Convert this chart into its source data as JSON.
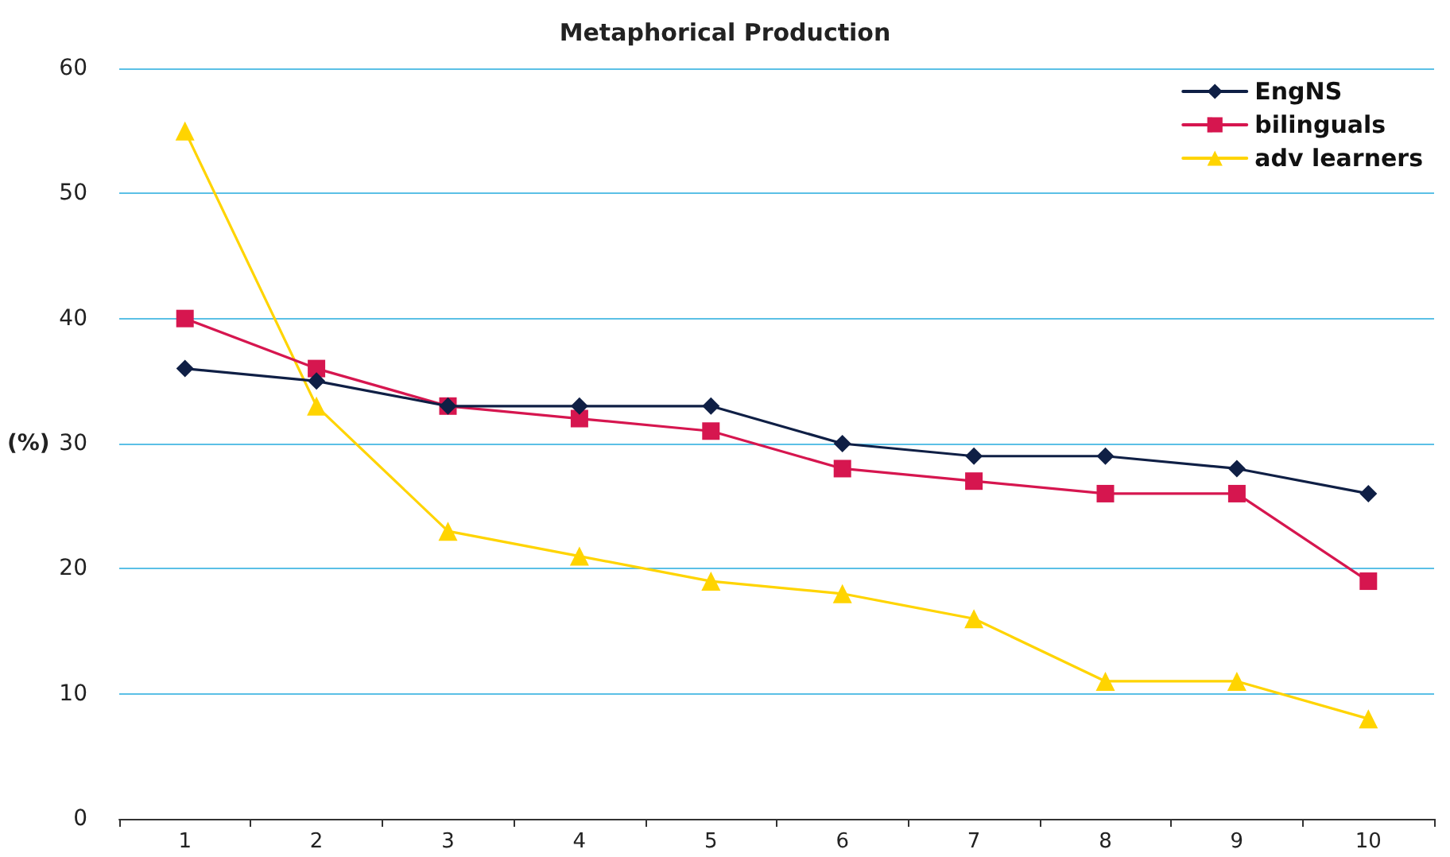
{
  "chart_data": {
    "type": "line",
    "title": "Metaphorical Production",
    "ylabel": "(%)",
    "categories": [
      "1",
      "2",
      "3",
      "4",
      "5",
      "6",
      "7",
      "8",
      "9",
      "10"
    ],
    "series": [
      {
        "name": "EngNS",
        "color": "#0f1f45",
        "marker": "diamond",
        "values": [
          36,
          35,
          33,
          33,
          33,
          30,
          29,
          29,
          28,
          26
        ]
      },
      {
        "name": "bilinguals",
        "color": "#d6164f",
        "marker": "square",
        "values": [
          40,
          36,
          33,
          32,
          31,
          28,
          27,
          26,
          26,
          19
        ]
      },
      {
        "name": "adv learners",
        "color": "#ffd400",
        "marker": "triangle",
        "values": [
          55,
          33,
          23,
          21,
          19,
          18,
          16,
          11,
          11,
          8
        ]
      }
    ],
    "ylim": [
      0,
      60
    ],
    "yticks": [
      0,
      10,
      20,
      30,
      40,
      50,
      60
    ],
    "grid": "y",
    "legend": "top right"
  }
}
